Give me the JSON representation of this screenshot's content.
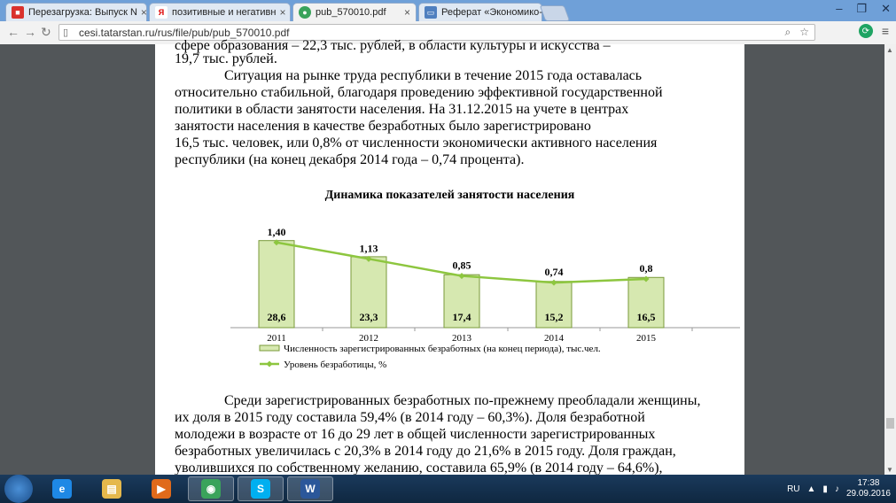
{
  "browser": {
    "tabs": [
      {
        "label": "Перезагрузка: Выпуск N",
        "icon": "news-icon",
        "color": "#d9312d"
      },
      {
        "label": "позитивные и негативн",
        "icon": "yandex-icon",
        "color": "#ffffff"
      },
      {
        "label": "pub_570010.pdf",
        "icon": "pdf-icon",
        "color": "#3aa35b"
      },
      {
        "label": "Реферат «Экономико-г",
        "icon": "monitor-icon",
        "color": "#4f7fbf"
      }
    ],
    "url": "cesi.tatarstan.ru/rus/file/pub/pub_570010.pdf"
  },
  "document": {
    "line_top": "сфере образования – 22,3 тыс. рублей, в области культуры и искусства –",
    "line_rub": "19,7 тыс. рублей.",
    "para1": [
      "Ситуация на рынке труда республики в течение 2015 года оставалась",
      "относительно стабильной, благодаря проведению эффективной государственной",
      "политики в области занятости населения. На 31.12.2015 на учете в центрах",
      "занятости населения в качестве безработных было зарегистрировано",
      "16,5 тыс. человек, или 0,8% от численности экономически активного населения",
      "республики (на конец декабря 2014 года – 0,74 процента)."
    ],
    "para2": [
      "Среди зарегистрированных безработных по-прежнему преобладали женщины,",
      "их доля в 2015 году составила 59,4% (в 2014 году – 60,3%). Доля безработной",
      "молодежи в возрасте от 16 до 29 лет в общей численности зарегистрированных",
      "безработных увеличилась с 20,3% в 2014 году до 21,6% в 2015 году. Доля граждан,",
      "уволившихся по собственному желанию, составила 65,9% (в 2014 году – 64,6%),"
    ]
  },
  "chart_data": {
    "type": "bar",
    "title": "Динамика показателей занятости населения",
    "categories": [
      "2011",
      "2012",
      "2013",
      "2014",
      "2015"
    ],
    "series": [
      {
        "name": "Численность зарегистрированных безработных (на конец периода), тыс.чел.",
        "values": [
          28.6,
          23.3,
          17.4,
          15.2,
          16.5
        ],
        "labels": [
          "28,6",
          "23,3",
          "17,4",
          "15,2",
          "16,5"
        ],
        "kind": "bar",
        "color": "#d6e8b0"
      },
      {
        "name": "Уровень безработицы, %",
        "values": [
          1.4,
          1.13,
          0.85,
          0.74,
          0.8
        ],
        "labels": [
          "1,40",
          "1,13",
          "0,85",
          "0,74",
          "0,8"
        ],
        "kind": "line",
        "color": "#8dc63f"
      }
    ],
    "bar_ylim": [
      0,
      32
    ],
    "line_ylim": [
      0,
      1.6
    ],
    "legend_position": "bottom"
  },
  "taskbar": {
    "apps": [
      {
        "icon": "ie-icon",
        "color": "#1e88e5",
        "glyph": "e"
      },
      {
        "icon": "explorer-icon",
        "color": "#e5b84c",
        "glyph": "▤"
      },
      {
        "icon": "media-player-icon",
        "color": "#e06a1b",
        "glyph": "▶"
      },
      {
        "icon": "chrome-icon",
        "color": "#3aa35b",
        "glyph": "◉"
      },
      {
        "icon": "skype-icon",
        "color": "#00aff0",
        "glyph": "S"
      },
      {
        "icon": "word-icon",
        "color": "#2b579a",
        "glyph": "W"
      }
    ],
    "lang": "RU",
    "time": "17:38",
    "date": "29.09.2016"
  }
}
